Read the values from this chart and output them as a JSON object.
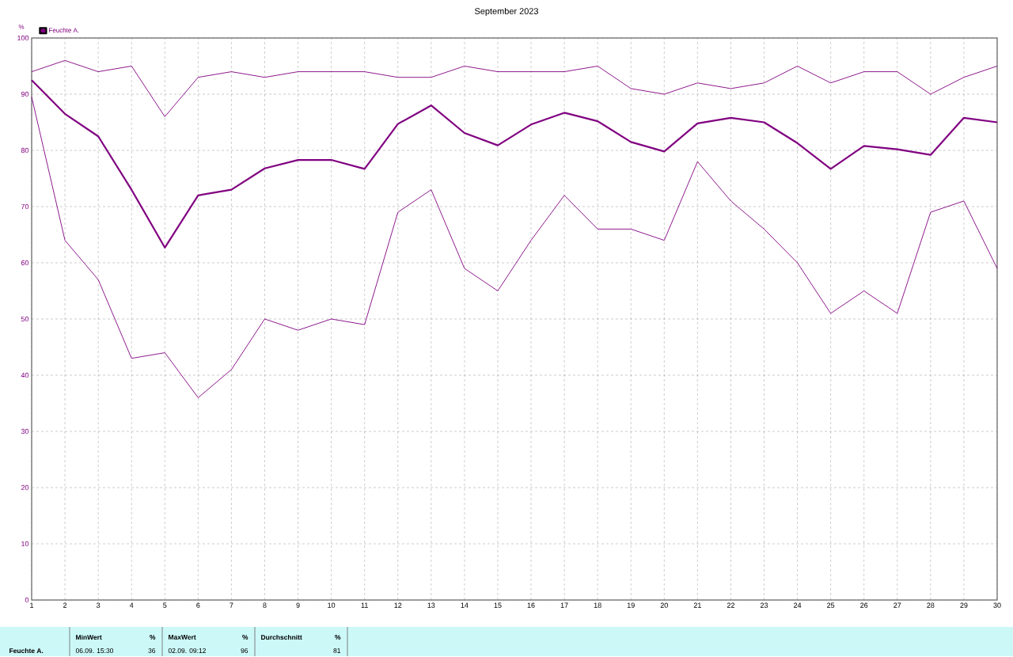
{
  "chart_data": {
    "type": "line",
    "title": "September 2023",
    "ylabel": "%",
    "x": [
      1,
      2,
      3,
      4,
      5,
      6,
      7,
      8,
      9,
      10,
      11,
      12,
      13,
      14,
      15,
      16,
      17,
      18,
      19,
      20,
      21,
      22,
      23,
      24,
      25,
      26,
      27,
      28,
      29,
      30
    ],
    "series": [
      {
        "color": "#800080",
        "values": [
          94,
          96,
          94,
          95,
          86,
          93,
          94,
          93,
          94,
          94,
          94,
          93,
          93,
          95,
          94,
          94,
          94,
          95,
          91,
          90,
          92,
          91,
          92,
          95,
          92,
          94,
          94,
          90,
          93,
          95
        ]
      },
      {
        "name": "Feuchte A.",
        "color": "#800080",
        "values": [
          92.5,
          86.5,
          82.5,
          73,
          62.7,
          72,
          73,
          76.8,
          78.3,
          78.3,
          76.7,
          84.7,
          88,
          83.1,
          80.9,
          84.6,
          86.7,
          85.2,
          81.5,
          79.8,
          84.8,
          85.8,
          85,
          81.3,
          76.7,
          80.8,
          80.2,
          79.2,
          85.8,
          85
        ]
      },
      {
        "color": "#800080",
        "values": [
          89.5,
          64,
          57,
          43,
          44,
          36,
          41,
          50,
          48,
          50,
          49,
          69,
          73,
          59,
          55,
          64,
          72,
          66,
          66,
          64,
          78,
          71,
          66,
          60,
          51,
          55,
          51,
          69,
          71,
          59
        ]
      }
    ],
    "xlim": [
      1,
      30
    ],
    "ylim": [
      0,
      100
    ],
    "xticks": [
      1,
      2,
      3,
      4,
      5,
      6,
      7,
      8,
      9,
      10,
      11,
      12,
      13,
      14,
      15,
      16,
      17,
      18,
      19,
      20,
      21,
      22,
      23,
      24,
      25,
      26,
      27,
      28,
      29,
      30
    ],
    "yticks": [
      0,
      10,
      20,
      30,
      40,
      50,
      60,
      70,
      80,
      90,
      100
    ],
    "grid": true,
    "legend": "top left",
    "marker": "none",
    "line_style": "solid",
    "annotations": [
      "Feuchte A.",
      "MinWert",
      "%",
      "06.09. 15:30",
      "36",
      "MaxWert",
      "%",
      "02.09. 09:12",
      "96",
      "Durchschnitt",
      "%",
      "81"
    ]
  }
}
